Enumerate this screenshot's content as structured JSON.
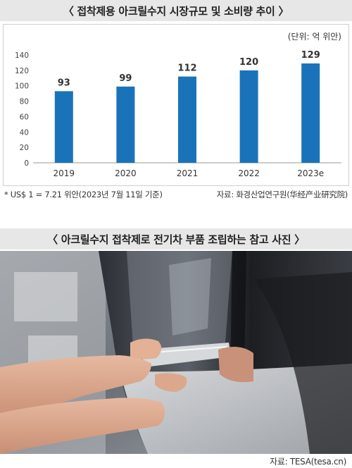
{
  "chart_title": "〈 접착제용 아크릴수지 시장규모 및 소비량 추이 〉",
  "unit": "(단위: 억 위안)",
  "chart_data": {
    "type": "bar",
    "title": "〈 접착제용 아크릴수지 시장규모 및 소비량 추이 〉",
    "categories": [
      "2019",
      "2020",
      "2021",
      "2022",
      "2023e"
    ],
    "values": [
      93,
      99,
      112,
      120,
      129
    ],
    "data_labels": [
      "93",
      "99",
      "112",
      "120",
      "129"
    ],
    "yticks": [
      "0",
      "20",
      "40",
      "60",
      "80",
      "100",
      "120",
      "140"
    ],
    "ylim": [
      0,
      140
    ],
    "xlabel": "",
    "ylabel": "",
    "bar_color": "#1a73b8",
    "grid": false,
    "legend": "none"
  },
  "note_left": "* US$ 1 = 7.21 위안(2023년 7월 11일 기준)",
  "note_right": "자료: 화경산업연구원(华经产业研究院)",
  "photo_title": "〈 아크릴수지 접착제로 전기차 부품 조립하는 참고 사진 〉",
  "photo_source": "자료: TESA(tesa.cn)",
  "colors": {
    "title_bar_bg": "#e7e7e7",
    "bar": "#1a73b8"
  }
}
